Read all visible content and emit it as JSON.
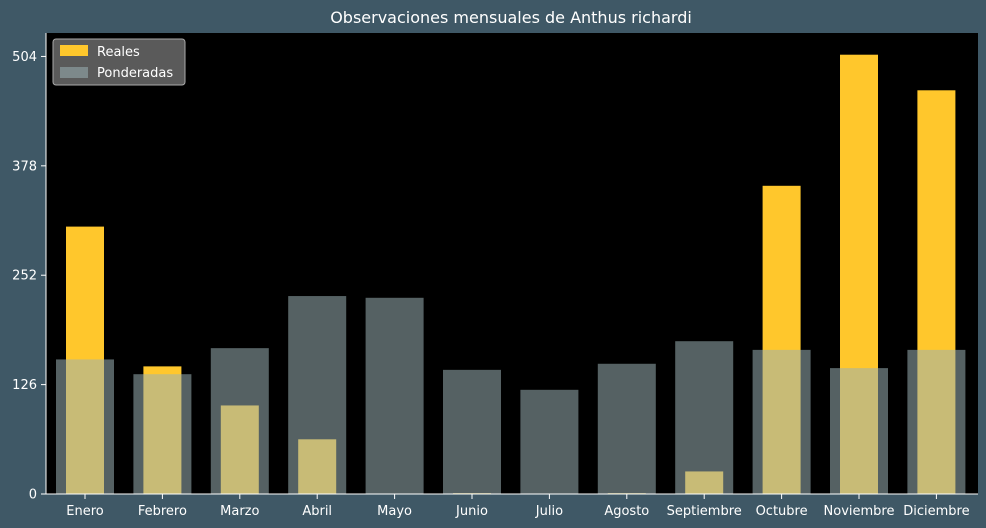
{
  "chart_data": {
    "type": "bar",
    "title": "Observaciones mensuales de Anthus richardi",
    "xlabel": "",
    "ylabel": "",
    "categories": [
      "Enero",
      "Febrero",
      "Marzo",
      "Abril",
      "Mayo",
      "Junio",
      "Julio",
      "Agosto",
      "Septiembre",
      "Octubre",
      "Noviembre",
      "Diciembre"
    ],
    "series": [
      {
        "name": "Reales",
        "color": "#ffc72c",
        "values": [
          308,
          147,
          102,
          63,
          0,
          1,
          0,
          1,
          26,
          355,
          506,
          465
        ]
      },
      {
        "name": "Ponderadas",
        "color": "#9ab0b5",
        "values": [
          155,
          138,
          168,
          228,
          226,
          143,
          120,
          150,
          176,
          166,
          145,
          166
        ]
      }
    ],
    "yticks": [
      0,
      126,
      252,
      378,
      504
    ],
    "ylim": [
      0,
      531
    ],
    "legend_position": "top-left",
    "grid": false,
    "colors": {
      "page_background": "#3f5866",
      "plot_background": "#000000",
      "text": "#ffffff",
      "reales": "#ffc72c",
      "ponderadas": "#9ab0b5"
    }
  }
}
